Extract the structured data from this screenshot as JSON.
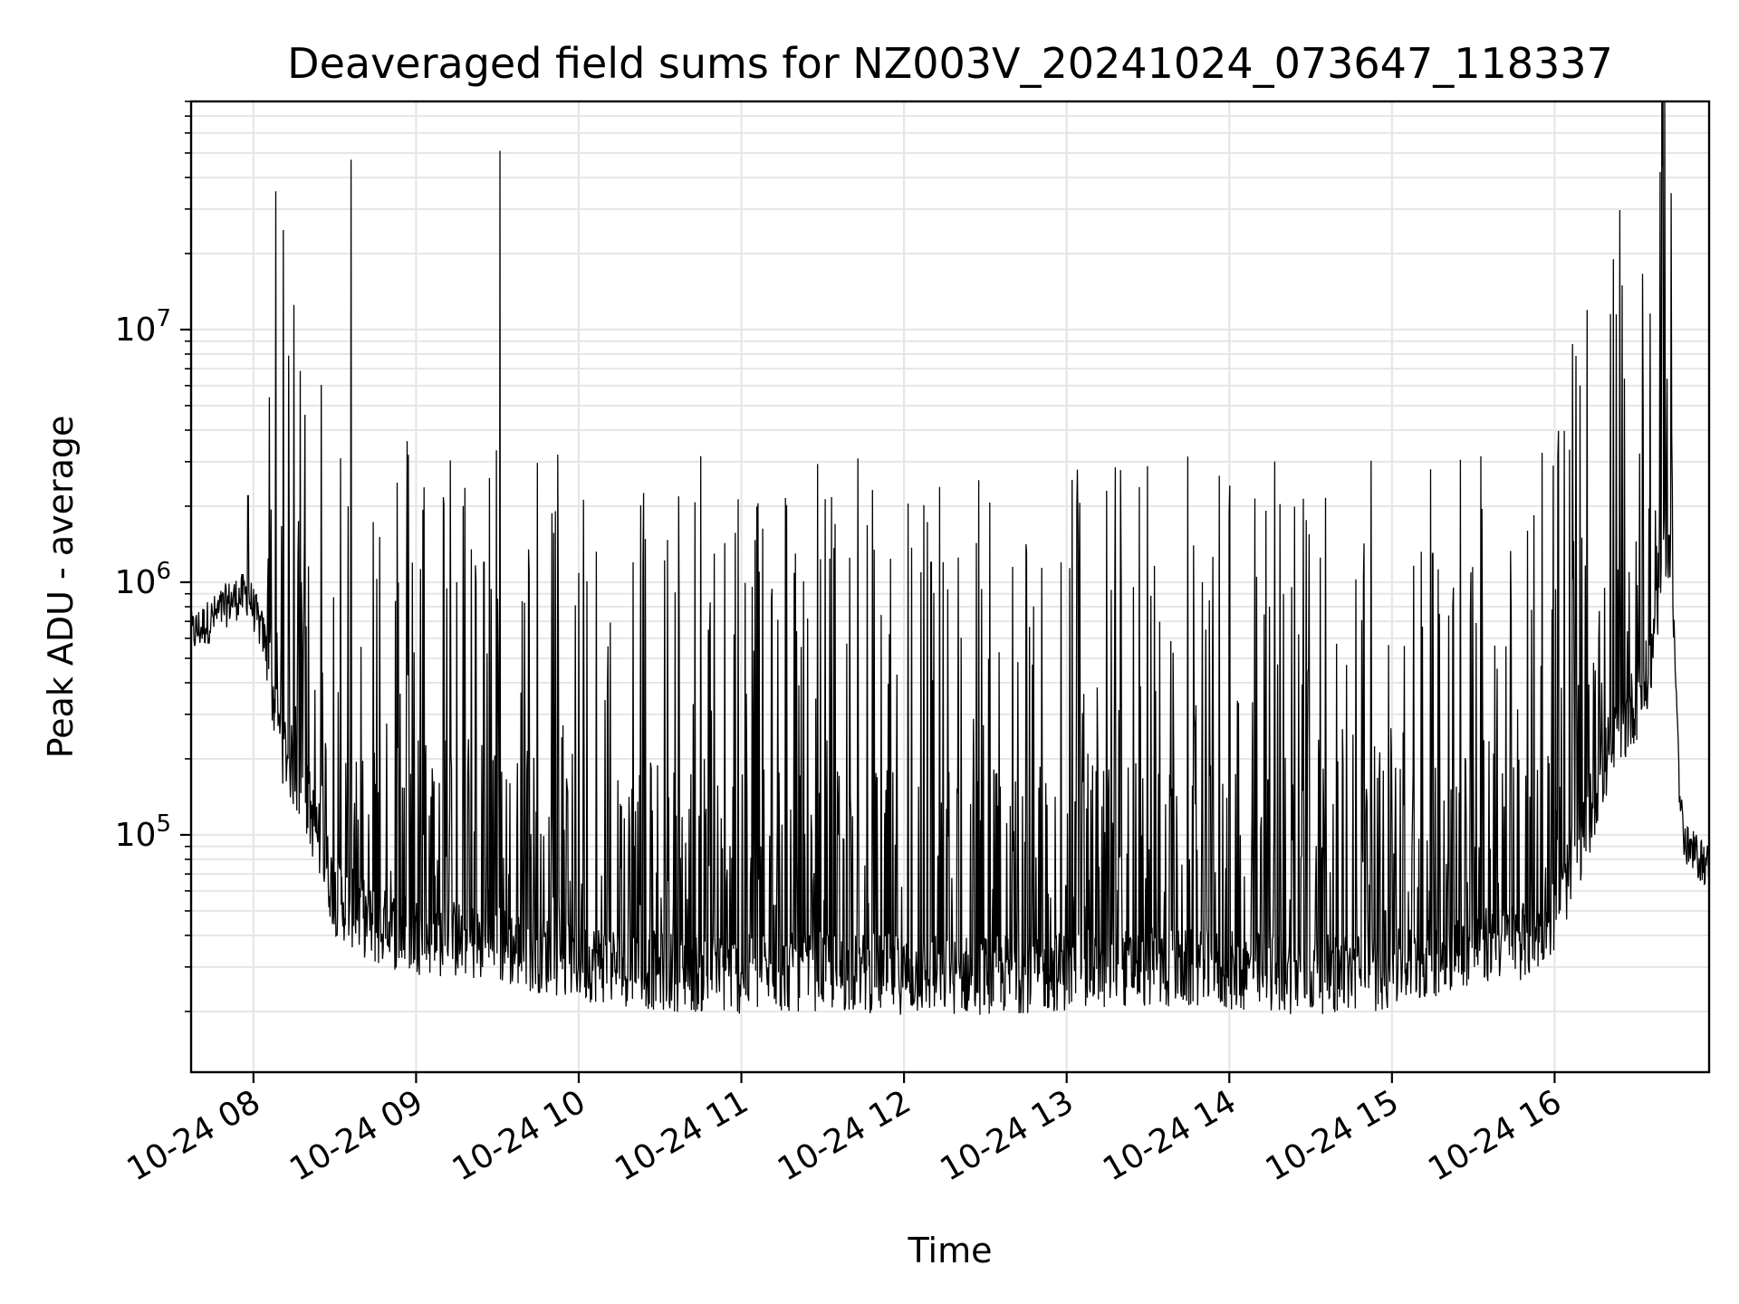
{
  "chart_data": {
    "type": "line",
    "title": "Deaveraged field sums for NZ003V_20241024_073647_118337",
    "xlabel": "Time",
    "ylabel": "Peak ADU - average",
    "x_range": [
      "2024-10-24 07:37",
      "2024-10-24 16:57"
    ],
    "y_scale": "log",
    "y_range": [
      11500,
      80000000
    ],
    "grid": true,
    "line_color": "#000000",
    "x_ticks": [
      {
        "label": "10-24 08",
        "time": "2024-10-24 08:00"
      },
      {
        "label": "10-24 09",
        "time": "2024-10-24 09:00"
      },
      {
        "label": "10-24 10",
        "time": "2024-10-24 10:00"
      },
      {
        "label": "10-24 11",
        "time": "2024-10-24 11:00"
      },
      {
        "label": "10-24 12",
        "time": "2024-10-24 12:00"
      },
      {
        "label": "10-24 13",
        "time": "2024-10-24 13:00"
      },
      {
        "label": "10-24 14",
        "time": "2024-10-24 14:00"
      },
      {
        "label": "10-24 15",
        "time": "2024-10-24 15:00"
      },
      {
        "label": "10-24 16",
        "time": "2024-10-24 16:00"
      }
    ],
    "y_ticks": [
      {
        "base": "10",
        "exp": "5",
        "value": 100000
      },
      {
        "base": "10",
        "exp": "6",
        "value": 1000000
      },
      {
        "base": "10",
        "exp": "7",
        "value": 10000000
      }
    ],
    "series": [
      {
        "baseline": [
          [
            "2024-10-24 07:37",
            620000
          ],
          [
            "2024-10-24 07:45",
            720000
          ],
          [
            "2024-10-24 07:52",
            850000
          ],
          [
            "2024-10-24 07:58",
            900000
          ],
          [
            "2024-10-24 08:04",
            600000
          ],
          [
            "2024-10-24 08:10",
            250000
          ],
          [
            "2024-10-24 08:20",
            140000
          ],
          [
            "2024-10-24 08:30",
            60000
          ],
          [
            "2024-10-24 08:45",
            45000
          ],
          [
            "2024-10-24 09:00",
            42000
          ],
          [
            "2024-10-24 09:30",
            38000
          ],
          [
            "2024-10-24 10:00",
            33000
          ],
          [
            "2024-10-24 10:30",
            30000
          ],
          [
            "2024-10-24 11:00",
            29000
          ],
          [
            "2024-10-24 11:30",
            30000
          ],
          [
            "2024-10-24 12:00",
            29000
          ],
          [
            "2024-10-24 12:30",
            29000
          ],
          [
            "2024-10-24 13:00",
            30000
          ],
          [
            "2024-10-24 13:30",
            31000
          ],
          [
            "2024-10-24 14:00",
            30000
          ],
          [
            "2024-10-24 14:30",
            29000
          ],
          [
            "2024-10-24 15:00",
            30000
          ],
          [
            "2024-10-24 15:15",
            34000
          ],
          [
            "2024-10-24 15:30",
            38000
          ],
          [
            "2024-10-24 15:50",
            40000
          ],
          [
            "2024-10-24 16:00",
            50000
          ],
          [
            "2024-10-24 16:10",
            100000
          ],
          [
            "2024-10-24 16:20",
            220000
          ],
          [
            "2024-10-24 16:30",
            350000
          ],
          [
            "2024-10-24 16:35",
            450000
          ],
          [
            "2024-10-24 16:38",
            900000
          ],
          [
            "2024-10-24 16:41",
            1500000
          ],
          [
            "2024-10-24 16:43",
            1200000
          ],
          [
            "2024-10-24 16:45",
            400000
          ],
          [
            "2024-10-24 16:46",
            150000
          ],
          [
            "2024-10-24 16:48",
            90000
          ],
          [
            "2024-10-24 16:57",
            75000
          ]
        ],
        "peaks": [
          [
            "2024-10-24 08:19",
            4600000
          ],
          [
            "2024-10-24 08:36",
            47000000
          ],
          [
            "2024-10-24 09:31",
            51000000
          ],
          [
            "2024-10-24 07:58",
            2200000
          ],
          [
            "2024-10-24 09:15",
            1000000
          ],
          [
            "2024-10-24 09:25",
            1200000
          ],
          [
            "2024-10-24 10:20",
            1200000
          ],
          [
            "2024-10-24 10:50",
            1300000
          ],
          [
            "2024-10-24 11:20",
            1300000
          ],
          [
            "2024-10-24 11:40",
            1250000
          ],
          [
            "2024-10-24 12:10",
            1200000
          ],
          [
            "2024-10-24 12:40",
            1150000
          ],
          [
            "2024-10-24 12:58",
            1200000
          ],
          [
            "2024-10-24 13:20",
            1000000
          ],
          [
            "2024-10-24 13:50",
            1000000
          ],
          [
            "2024-10-24 14:20",
            900000
          ],
          [
            "2024-10-24 15:15",
            1300000
          ],
          [
            "2024-10-24 15:50",
            1600000
          ],
          [
            "2024-10-24 16:10",
            1500000
          ],
          [
            "2024-10-24 16:30",
            1450000
          ]
        ]
      }
    ]
  }
}
